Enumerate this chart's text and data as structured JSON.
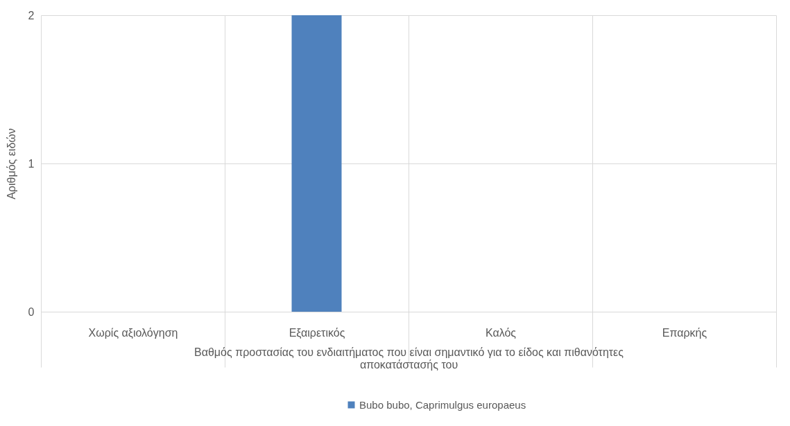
{
  "chart_data": {
    "type": "bar",
    "categories": [
      "Χωρίς αξιολόγηση",
      "Εξαιρετικός",
      "Καλός",
      "Επαρκής"
    ],
    "series": [
      {
        "name": "Bubo bubo, Caprimulgus europaeus",
        "color": "#4f81bd",
        "values": [
          0,
          2,
          0,
          0
        ]
      }
    ],
    "xlabel": "Βαθμός προστασίας του ενδιαιτήματος που είναι σημαντικό για το είδος και πιθανότητες αποκατάστασής του",
    "ylabel": "Αριθμός ειδών",
    "ylim": [
      0,
      2
    ],
    "yticks": [
      0,
      1,
      2
    ],
    "grid": true,
    "legend": "bottom"
  }
}
